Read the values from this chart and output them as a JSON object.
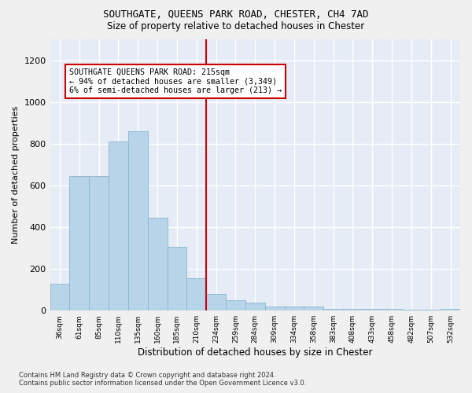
{
  "title_line1": "SOUTHGATE, QUEENS PARK ROAD, CHESTER, CH4 7AD",
  "title_line2": "Size of property relative to detached houses in Chester",
  "xlabel": "Distribution of detached houses by size in Chester",
  "ylabel": "Number of detached properties",
  "bar_color": "#b8d4e8",
  "bar_edge_color": "#8ab4cc",
  "bg_color": "#e6ecf6",
  "grid_color": "#ffffff",
  "fig_bg_color": "#f0f0f0",
  "vline_color": "#cc0000",
  "annotation_text_line1": "SOUTHGATE QUEENS PARK ROAD: 215sqm",
  "annotation_text_line2": "← 94% of detached houses are smaller (3,349)",
  "annotation_text_line3": "6% of semi-detached houses are larger (213) →",
  "footer_line1": "Contains HM Land Registry data © Crown copyright and database right 2024.",
  "footer_line2": "Contains public sector information licensed under the Open Government Licence v3.0.",
  "categories": [
    "36sqm",
    "61sqm",
    "85sqm",
    "110sqm",
    "135sqm",
    "160sqm",
    "185sqm",
    "210sqm",
    "234sqm",
    "259sqm",
    "284sqm",
    "309sqm",
    "334sqm",
    "358sqm",
    "383sqm",
    "408sqm",
    "433sqm",
    "458sqm",
    "482sqm",
    "507sqm",
    "532sqm"
  ],
  "values": [
    130,
    645,
    645,
    810,
    860,
    445,
    305,
    155,
    80,
    50,
    40,
    20,
    20,
    20,
    10,
    10,
    10,
    10,
    5,
    5,
    10
  ],
  "vline_x": 7.5,
  "ylim": [
    0,
    1300
  ],
  "yticks": [
    0,
    200,
    400,
    600,
    800,
    1000,
    1200
  ]
}
